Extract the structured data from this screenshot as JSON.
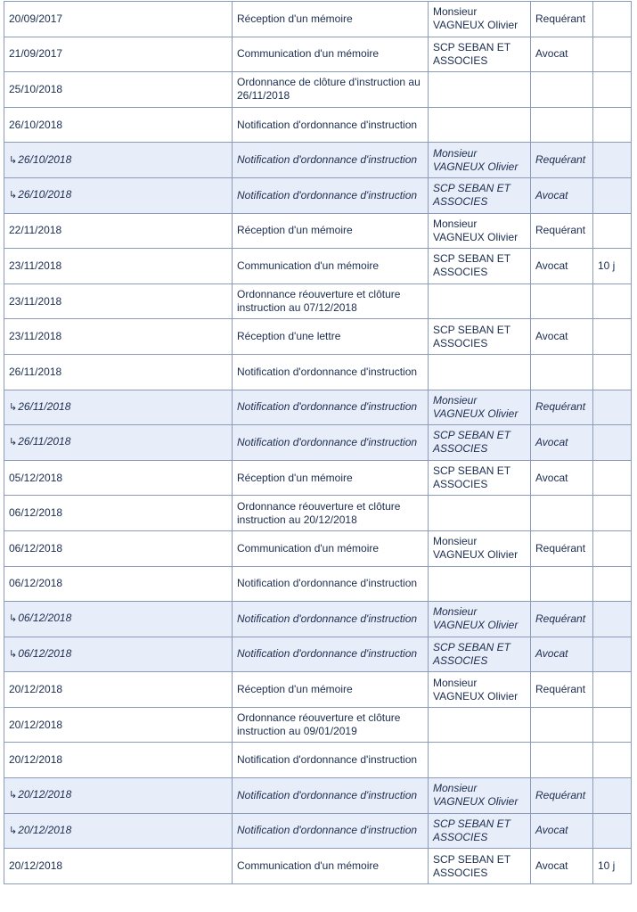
{
  "rows": [
    {
      "date": "20/09/2017",
      "event": "Réception d'un mémoire",
      "party": "Monsieur VAGNEUX Olivier",
      "role": "Requérant",
      "delay": "",
      "child": false
    },
    {
      "date": "21/09/2017",
      "event": "Communication d'un mémoire",
      "party": "SCP SEBAN ET ASSOCIES",
      "role": "Avocat",
      "delay": "",
      "child": false
    },
    {
      "date": "25/10/2018",
      "event": "Ordonnance de clôture d'instruction au 26/11/2018",
      "party": "",
      "role": "",
      "delay": "",
      "child": false
    },
    {
      "date": "26/10/2018",
      "event": "Notification d'ordonnance d'instruction",
      "party": "",
      "role": "",
      "delay": "",
      "child": false
    },
    {
      "date": "26/10/2018",
      "event": "Notification d'ordonnance d'instruction",
      "party": "Monsieur VAGNEUX Olivier",
      "role": "Requérant",
      "delay": "",
      "child": true
    },
    {
      "date": "26/10/2018",
      "event": "Notification d'ordonnance d'instruction",
      "party": "SCP SEBAN ET ASSOCIES",
      "role": "Avocat",
      "delay": "",
      "child": true
    },
    {
      "date": "22/11/2018",
      "event": "Réception d'un mémoire",
      "party": "Monsieur VAGNEUX Olivier",
      "role": "Requérant",
      "delay": "",
      "child": false
    },
    {
      "date": "23/11/2018",
      "event": "Communication d'un mémoire",
      "party": "SCP SEBAN ET ASSOCIES",
      "role": "Avocat",
      "delay": "10 j",
      "child": false
    },
    {
      "date": "23/11/2018",
      "event": "Ordonnance réouverture et clôture instruction au 07/12/2018",
      "party": "",
      "role": "",
      "delay": "",
      "child": false
    },
    {
      "date": "23/11/2018",
      "event": "Réception d'une lettre",
      "party": "SCP SEBAN ET ASSOCIES",
      "role": "Avocat",
      "delay": "",
      "child": false
    },
    {
      "date": "26/11/2018",
      "event": "Notification d'ordonnance d'instruction",
      "party": "",
      "role": "",
      "delay": "",
      "child": false
    },
    {
      "date": "26/11/2018",
      "event": "Notification d'ordonnance d'instruction",
      "party": "Monsieur VAGNEUX Olivier",
      "role": "Requérant",
      "delay": "",
      "child": true
    },
    {
      "date": "26/11/2018",
      "event": "Notification d'ordonnance d'instruction",
      "party": "SCP SEBAN ET ASSOCIES",
      "role": "Avocat",
      "delay": "",
      "child": true
    },
    {
      "date": "05/12/2018",
      "event": "Réception d'un mémoire",
      "party": "SCP SEBAN ET ASSOCIES",
      "role": "Avocat",
      "delay": "",
      "child": false
    },
    {
      "date": "06/12/2018",
      "event": "Ordonnance réouverture et clôture instruction au 20/12/2018",
      "party": "",
      "role": "",
      "delay": "",
      "child": false
    },
    {
      "date": "06/12/2018",
      "event": "Communication d'un mémoire",
      "party": "Monsieur VAGNEUX Olivier",
      "role": "Requérant",
      "delay": "",
      "child": false
    },
    {
      "date": "06/12/2018",
      "event": "Notification d'ordonnance d'instruction",
      "party": "",
      "role": "",
      "delay": "",
      "child": false
    },
    {
      "date": "06/12/2018",
      "event": "Notification d'ordonnance d'instruction",
      "party": "Monsieur VAGNEUX Olivier",
      "role": "Requérant",
      "delay": "",
      "child": true
    },
    {
      "date": "06/12/2018",
      "event": "Notification d'ordonnance d'instruction",
      "party": "SCP SEBAN ET ASSOCIES",
      "role": "Avocat",
      "delay": "",
      "child": true
    },
    {
      "date": "20/12/2018",
      "event": "Réception d'un mémoire",
      "party": "Monsieur VAGNEUX Olivier",
      "role": "Requérant",
      "delay": "",
      "child": false
    },
    {
      "date": "20/12/2018",
      "event": "Ordonnance réouverture et clôture instruction au 09/01/2019",
      "party": "",
      "role": "",
      "delay": "",
      "child": false
    },
    {
      "date": "20/12/2018",
      "event": "Notification d'ordonnance d'instruction",
      "party": "",
      "role": "",
      "delay": "",
      "child": false
    },
    {
      "date": "20/12/2018",
      "event": "Notification d'ordonnance d'instruction",
      "party": "Monsieur VAGNEUX Olivier",
      "role": "Requérant",
      "delay": "",
      "child": true
    },
    {
      "date": "20/12/2018",
      "event": "Notification d'ordonnance d'instruction",
      "party": "SCP SEBAN ET ASSOCIES",
      "role": "Avocat",
      "delay": "",
      "child": true
    },
    {
      "date": "20/12/2018",
      "event": "Communication d'un mémoire",
      "party": "SCP SEBAN ET ASSOCIES",
      "role": "Avocat",
      "delay": "10 j",
      "child": false
    }
  ],
  "child_marker": "↳",
  "colors": {
    "text": "#1b2c4e",
    "border": "#8d9bbb",
    "child_row_bg": "#e8eef9"
  }
}
